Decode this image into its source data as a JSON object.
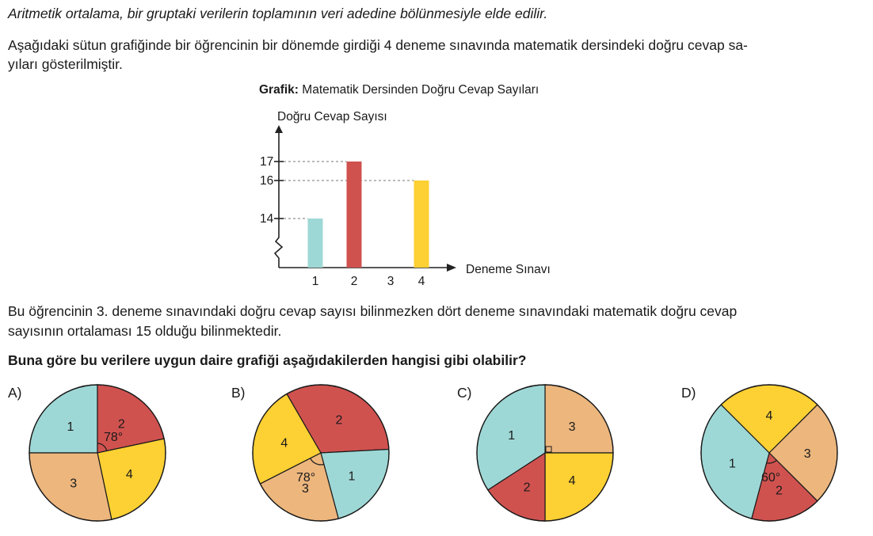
{
  "intro": "Aritmetik ortalama, bir gruptaki verilerin toplamının veri adedine bölünmesiyle elde edilir.",
  "paragraph1": [
    "Aşağıdaki sütun grafiğinde bir öğrencinin bir dönemde girdiği 4 deneme sınavında matematik dersindeki doğru cevap sa-",
    "yıları gösterilmiştir."
  ],
  "chart_title_bold": "Grafik:",
  "chart_title_rest": "Matematik Dersinden Doğru Cevap Sayıları",
  "chart_data": {
    "type": "bar",
    "title": "Grafik: Matematik Dersinden Doğru Cevap Sayıları",
    "ylabel": "Doğru Cevap Sayısı",
    "xlabel": "Deneme Sınavı",
    "categories": [
      "1",
      "2",
      "3",
      "4"
    ],
    "values": [
      14,
      17,
      null,
      16
    ],
    "y_ticks": [
      14,
      16,
      17
    ],
    "ylim": [
      12,
      18
    ],
    "y_axis_break": true,
    "colors": [
      "#9ed8d6",
      "#d0524f",
      null,
      "#fdd033"
    ]
  },
  "paragraph2": [
    "Bu öğrencinin 3. deneme sınavındaki doğru cevap sayısı bilinmezken dört deneme sınavındaki matematik doğru cevap",
    "sayısının ortalaması 15 olduğu bilinmektedir."
  ],
  "question": "Buna göre bu verilere uygun daire grafiği aşağıdakilerden hangisi gibi olabilir?",
  "colors": {
    "1": "#9ed8d6",
    "2": "#d0524f",
    "3": "#ecb67d",
    "4": "#fdd033"
  },
  "options": [
    {
      "label": "A)",
      "slices": [
        {
          "label": "1",
          "start": 270,
          "end": 360
        },
        {
          "label": "2",
          "start": 0,
          "end": 78
        },
        {
          "label": "4",
          "start": 78,
          "end": 168
        },
        {
          "label": "3",
          "start": 168,
          "end": 270
        }
      ],
      "angle_label": "78°"
    },
    {
      "label": "B)",
      "slices": [
        {
          "label": "2",
          "start": 330,
          "end": 447
        },
        {
          "label": "1",
          "start": 87,
          "end": 165
        },
        {
          "label": "3",
          "start": 165,
          "end": 243
        },
        {
          "label": "4",
          "start": 243,
          "end": 330
        }
      ],
      "angle_label": "78°"
    },
    {
      "label": "C)",
      "slices": [
        {
          "label": "3",
          "start": 0,
          "end": 90
        },
        {
          "label": "4",
          "start": 90,
          "end": 180
        },
        {
          "label": "2",
          "start": 180,
          "end": 237
        },
        {
          "label": "1",
          "start": 237,
          "end": 360
        }
      ],
      "angle_label": ""
    },
    {
      "label": "D)",
      "slices": [
        {
          "label": "4",
          "start": 315,
          "end": 405
        },
        {
          "label": "3",
          "start": 45,
          "end": 135
        },
        {
          "label": "2",
          "start": 135,
          "end": 195
        },
        {
          "label": "1",
          "start": 195,
          "end": 315
        }
      ],
      "angle_label": "60°"
    }
  ]
}
